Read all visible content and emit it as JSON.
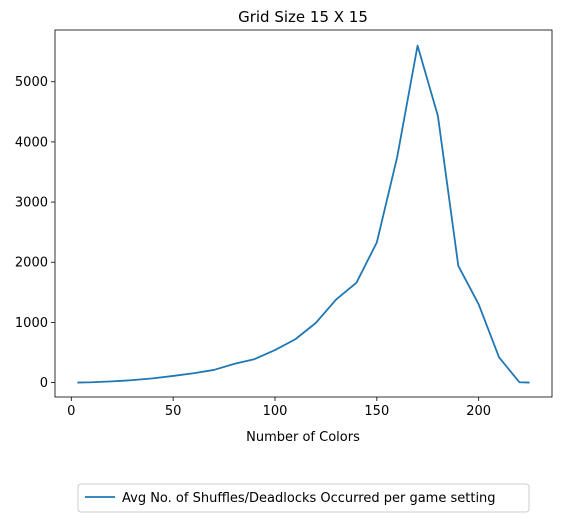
{
  "chart_data": {
    "type": "line",
    "title": "Grid Size 15 X 15",
    "xlabel": "Number of Colors",
    "ylabel": "",
    "xlim": [
      -8,
      236
    ],
    "ylim": [
      -240,
      5860
    ],
    "xticks": [
      0,
      50,
      100,
      150,
      200
    ],
    "yticks": [
      0,
      1000,
      2000,
      3000,
      4000,
      5000
    ],
    "grid": false,
    "legend_position": "bottom-center",
    "series": [
      {
        "name": "Avg No. of Shuffles/Deadlocks Occurred per game setting",
        "color": "#1f77b4",
        "x": [
          3,
          10,
          20,
          30,
          40,
          50,
          60,
          70,
          80,
          90,
          100,
          110,
          120,
          130,
          140,
          150,
          160,
          170,
          180,
          190,
          200,
          210,
          220,
          225
        ],
        "y": [
          0,
          5,
          20,
          40,
          70,
          110,
          155,
          210,
          310,
          390,
          540,
          720,
          990,
          1380,
          1660,
          2330,
          3750,
          5600,
          4430,
          1940,
          1300,
          420,
          5,
          0
        ]
      }
    ]
  }
}
